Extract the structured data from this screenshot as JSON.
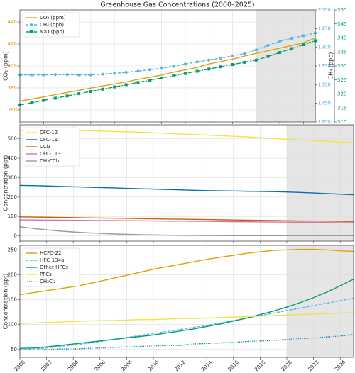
{
  "chart_data": [
    {
      "type": "line",
      "title": "Greenhouse Gas Concentrations (2000–2025)",
      "ylabel": "CO₂ (ppm)",
      "y2label": "CH₄ (ppb)",
      "x": [
        2000,
        2001,
        2002,
        2003,
        2004,
        2005,
        2006,
        2007,
        2008,
        2009,
        2010,
        2011,
        2012,
        2013,
        2014,
        2015,
        2016,
        2017,
        2018,
        2019,
        2020,
        2021,
        2022,
        2023,
        2024,
        2025
      ],
      "xlim": [
        2000,
        2025
      ],
      "xticks": [
        2000,
        2002,
        2004,
        2006,
        2008,
        2010,
        2012,
        2014,
        2016,
        2018,
        2020,
        2022,
        2024
      ],
      "ylim": [
        349,
        451
      ],
      "yticks": [
        360,
        380,
        400,
        420,
        440
      ],
      "y2lim": [
        1700,
        2000
      ],
      "y2ticks": [
        1700,
        1750,
        1800,
        1850,
        1900,
        1950,
        2000
      ],
      "y3lim": [
        310,
        350
      ],
      "y3ticks": [
        310,
        315,
        320,
        325,
        330,
        335,
        340,
        345,
        350
      ],
      "highlight": [
        2020,
        2025
      ],
      "grid": true,
      "legend": "upper left",
      "series": [
        {
          "name": "CO₂ (ppm)",
          "color": "#E69F00",
          "axis": "y",
          "dash": "solid",
          "marker": "none",
          "values": [
            368,
            369.9,
            371.8,
            373.9,
            375.8,
            377.8,
            379.9,
            381.8,
            383.6,
            385.4,
            387.8,
            389.6,
            391.7,
            394.3,
            396.4,
            398.6,
            401.8,
            404.0,
            406.2,
            409.0,
            411.4,
            413.8,
            416.2,
            418.6,
            421.0,
            425.5
          ]
        },
        {
          "name": "CH₄ (ppb)",
          "color": "#56B4E9",
          "axis": "y2",
          "dash": "dashed",
          "marker": "circle",
          "values": [
            1826,
            1826,
            1826,
            1827,
            1827,
            1826,
            1826,
            1828,
            1830,
            1833,
            1836,
            1840,
            1844,
            1849,
            1855,
            1861,
            1866,
            1871,
            1877,
            1883,
            1893,
            1905,
            1916,
            1924,
            1931,
            1938
          ]
        },
        {
          "name": "N₂O (ppb)",
          "color": "#009E73",
          "axis": "y3",
          "dash": "dashdot",
          "marker": "square",
          "values": [
            316.1,
            316.9,
            317.7,
            318.5,
            319.3,
            320.1,
            320.9,
            321.7,
            322.5,
            323.3,
            324.1,
            324.9,
            325.7,
            326.5,
            327.3,
            328.1,
            328.9,
            329.7,
            330.5,
            331.3,
            332.1,
            333.4,
            334.8,
            336.2,
            337.6,
            339.0
          ]
        }
      ]
    },
    {
      "type": "line",
      "ylabel": "Concentration (ppt)",
      "x": [
        2000,
        2001,
        2002,
        2003,
        2004,
        2005,
        2006,
        2007,
        2008,
        2009,
        2010,
        2011,
        2012,
        2013,
        2014,
        2015,
        2016,
        2017,
        2018,
        2019,
        2020,
        2021,
        2022,
        2023,
        2024,
        2025
      ],
      "xlim": [
        2000,
        2025
      ],
      "xticks": [
        2000,
        2002,
        2004,
        2006,
        2008,
        2010,
        2012,
        2014,
        2016,
        2018,
        2020,
        2022,
        2024
      ],
      "ylim": [
        -27,
        572
      ],
      "yticks": [
        0,
        100,
        200,
        300,
        400,
        500
      ],
      "highlight": [
        2020,
        2025
      ],
      "grid": true,
      "legend": "upper left",
      "series": [
        {
          "name": "CFC-12",
          "color": "#F0E442",
          "axis": "y",
          "dash": "solid",
          "marker": "none",
          "values": [
            543,
            544,
            545,
            544,
            543,
            542,
            540,
            538,
            536,
            534,
            531,
            528,
            525,
            522,
            519,
            516,
            513,
            510,
            506,
            502,
            498,
            494,
            490,
            487,
            483,
            480
          ]
        },
        {
          "name": "CFC-11",
          "color": "#0072B2",
          "axis": "y",
          "dash": "solid",
          "marker": "none",
          "values": [
            260,
            259,
            257,
            255,
            253,
            251,
            249,
            247,
            245,
            243,
            241,
            239,
            237,
            235,
            233,
            232,
            231,
            230,
            229,
            228,
            226,
            224,
            221,
            218,
            215,
            212
          ]
        },
        {
          "name": "CCl₄",
          "color": "#D55E00",
          "axis": "y",
          "dash": "solid",
          "marker": "none",
          "values": [
            98,
            97,
            96,
            95,
            94,
            93,
            92,
            91,
            90,
            89,
            88,
            87,
            86,
            85,
            84,
            83,
            82,
            81,
            80,
            79,
            78,
            77,
            77,
            76,
            75,
            74
          ]
        },
        {
          "name": "CFC-113",
          "color": "#CC79A7",
          "axis": "y",
          "dash": "solid",
          "marker": "none",
          "values": [
            82,
            82,
            81,
            81,
            80,
            80,
            79,
            79,
            78,
            78,
            77,
            76,
            76,
            75,
            75,
            74,
            73,
            73,
            72,
            72,
            71,
            70,
            70,
            69,
            68,
            68
          ]
        },
        {
          "name": "CH₃CCl₃",
          "color": "#999999",
          "axis": "y",
          "dash": "solid",
          "marker": "none",
          "values": [
            47,
            38,
            31,
            25,
            20,
            16,
            13,
            10,
            8,
            6,
            5,
            4,
            3,
            2.5,
            2,
            1.5,
            1.2,
            1,
            1,
            1,
            1,
            1,
            1,
            1,
            1,
            1
          ]
        }
      ]
    },
    {
      "type": "line",
      "ylabel": "Concentration (ppt)",
      "x": [
        2000,
        2001,
        2002,
        2003,
        2004,
        2005,
        2006,
        2007,
        2008,
        2009,
        2010,
        2011,
        2012,
        2013,
        2014,
        2015,
        2016,
        2017,
        2018,
        2019,
        2020,
        2021,
        2022,
        2023,
        2024,
        2025
      ],
      "xlim": [
        2000,
        2025
      ],
      "xticks": [
        2000,
        2002,
        2004,
        2006,
        2008,
        2010,
        2012,
        2014,
        2016,
        2018,
        2020,
        2022,
        2024
      ],
      "ylim": [
        34,
        259
      ],
      "yticks": [
        50,
        100,
        150,
        200,
        250
      ],
      "highlight": [
        2020,
        2025
      ],
      "grid": true,
      "legend": "upper left",
      "series": [
        {
          "name": "HCFC-22",
          "color": "#E69F00",
          "axis": "y",
          "dash": "solid",
          "marker": "none",
          "values": [
            160,
            164,
            168,
            172,
            176,
            181,
            187,
            193,
            199,
            205,
            211,
            216,
            221,
            226,
            231,
            235,
            239,
            243,
            246,
            249,
            250,
            251,
            251,
            250,
            248,
            247
          ]
        },
        {
          "name": "HFC-134a",
          "color": "#56B4E9",
          "axis": "y",
          "dash": "dashed",
          "marker": "none",
          "values": [
            49,
            51,
            53,
            56,
            59,
            62,
            66,
            70,
            74,
            78,
            82,
            86,
            90,
            94,
            98,
            103,
            108,
            113,
            118,
            123,
            128,
            133,
            138,
            143,
            148,
            153
          ]
        },
        {
          "name": "Other HFCs",
          "color": "#009E73",
          "axis": "y",
          "dash": "solid",
          "marker": "none",
          "values": [
            52,
            53,
            55,
            58,
            61,
            64,
            67,
            70,
            73,
            76,
            79,
            83,
            87,
            91,
            96,
            101,
            107,
            113,
            120,
            127,
            135,
            144,
            154,
            165,
            178,
            191
          ]
        },
        {
          "name": "PFCs",
          "color": "#F0E442",
          "axis": "y",
          "dash": "solid",
          "marker": "none",
          "values": [
            102,
            103,
            104,
            105,
            106,
            107,
            108,
            108,
            109,
            110,
            110,
            111,
            112,
            112,
            113,
            114,
            115,
            116,
            117,
            118,
            119,
            120,
            121,
            122,
            123,
            124
          ]
        },
        {
          "name": "CH₂Cl₂",
          "color": "#0072B2",
          "axis": "y",
          "dash": "dotted",
          "marker": "none",
          "values": [
            49,
            49,
            50,
            51,
            51,
            52,
            53,
            54,
            55,
            56,
            57,
            58,
            58,
            61,
            62,
            63,
            64,
            66,
            67,
            68,
            70,
            72,
            73,
            75,
            77,
            80
          ]
        }
      ]
    }
  ]
}
